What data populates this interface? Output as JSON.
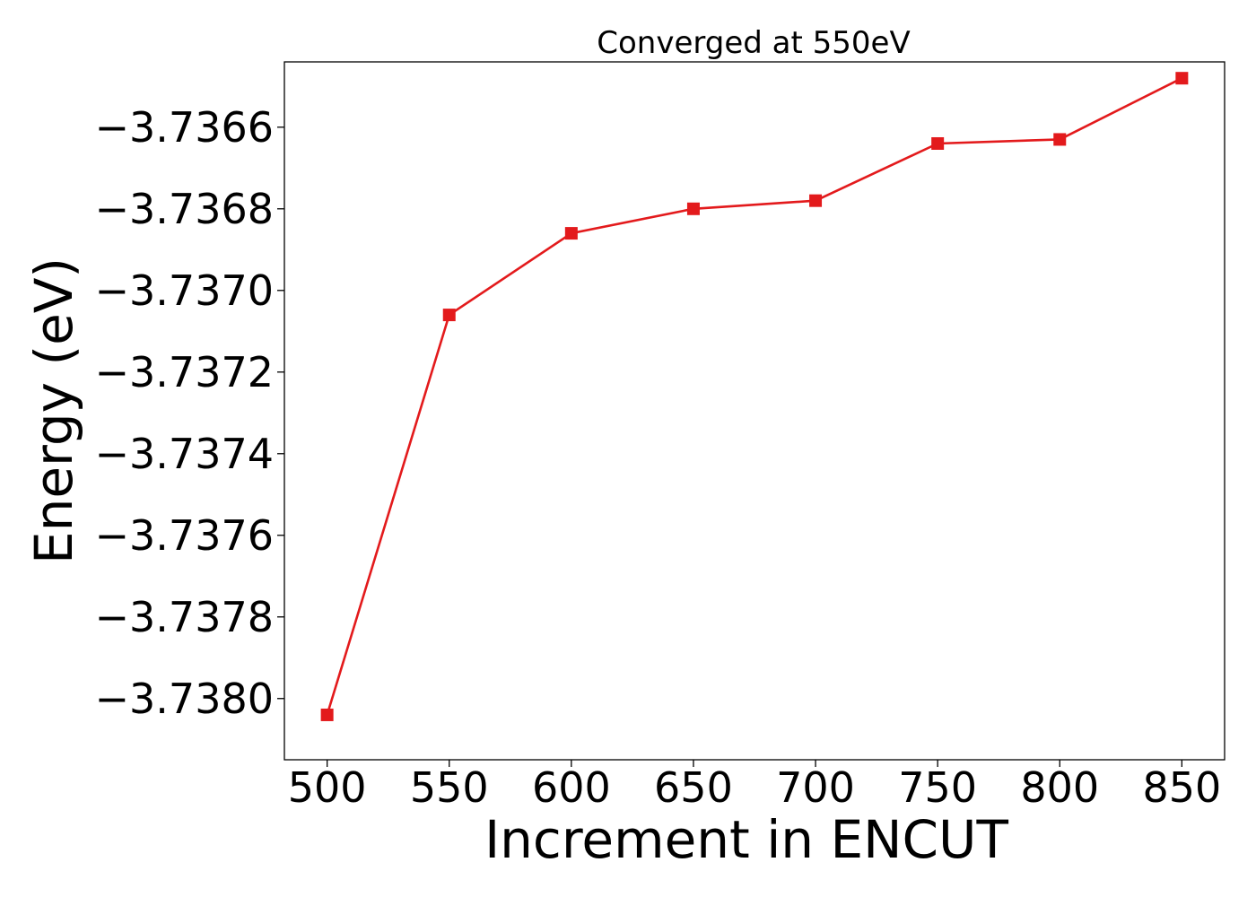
{
  "chart_data": {
    "type": "line",
    "title": "Converged at 550eV",
    "xlabel": "Increment in ENCUT",
    "ylabel": "Energy (eV)",
    "x": [
      500,
      550,
      600,
      650,
      700,
      750,
      800,
      850
    ],
    "series": [
      {
        "values": [
          -3.73804,
          -3.73706,
          -3.73686,
          -3.7368,
          -3.73678,
          -3.73664,
          -3.73663,
          -3.73648
        ],
        "color": "#e31a1c",
        "marker": "square"
      }
    ],
    "xticks": [
      500,
      550,
      600,
      650,
      700,
      750,
      800,
      850
    ],
    "xtick_labels": [
      "500",
      "550",
      "600",
      "650",
      "700",
      "750",
      "800",
      "850"
    ],
    "yticks": [
      -3.7366,
      -3.7368,
      -3.737,
      -3.7372,
      -3.7374,
      -3.7376,
      -3.7378,
      -3.738
    ],
    "ytick_labels": [
      "−3.7366",
      "−3.7368",
      "−3.7370",
      "−3.7372",
      "−3.7374",
      "−3.7376",
      "−3.7378",
      "−3.7380"
    ],
    "xlim": [
      482.5,
      867.5
    ],
    "ylim": [
      -3.73815,
      -3.73644
    ],
    "grid": false,
    "legend": "none"
  }
}
